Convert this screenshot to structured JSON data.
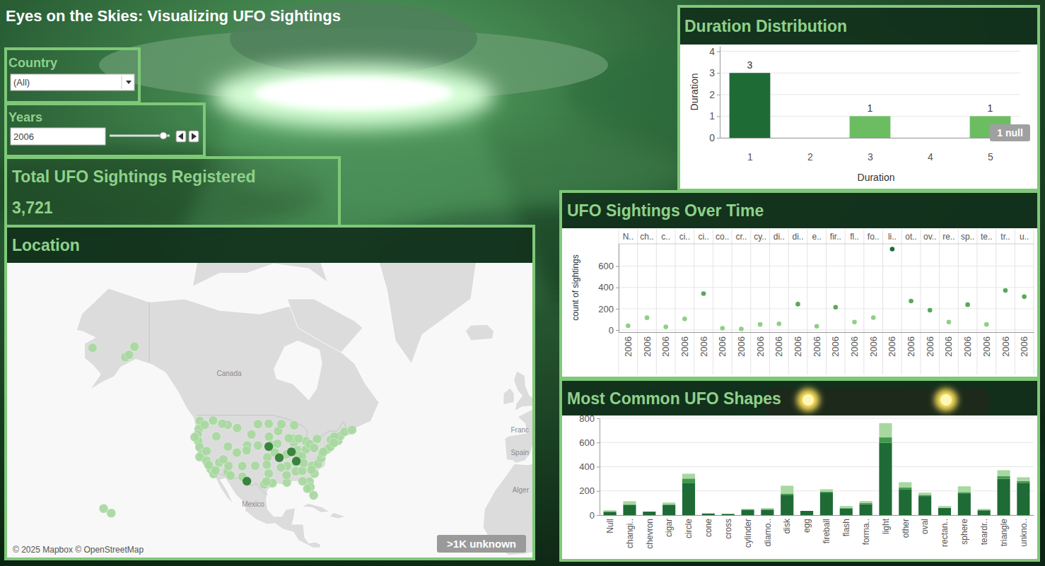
{
  "dashboard": {
    "title": "Eyes on the Skies: Visualizing UFO Sightings",
    "country": {
      "label": "Country",
      "value": "(All)"
    },
    "years": {
      "label": "Years",
      "value": "2006"
    },
    "kpi": {
      "title": "Total UFO Sightings Registered",
      "value": 3721,
      "label": "3,721"
    }
  },
  "chart_data": [
    {
      "type": "map",
      "title": "Location",
      "lon": [
        -162.0,
        -146.5,
        -149.9,
        -148.5,
        -157.9,
        -155.1,
        -122.3,
        -122.7,
        -117.4,
        -116.2,
        -123.1,
        -122.9,
        -122.4,
        -121.5,
        -122.4,
        -119.8,
        -118.2,
        -117.2,
        -115.1,
        -119.8,
        -112.1,
        -110.9,
        -111.9,
        -108.5,
        -112.0,
        -114.0,
        -104.8,
        -105.0,
        -106.6,
        -106.5,
        -111.7,
        -100.8,
        -96.8,
        -96.7,
        -103.2,
        -96.0,
        -97.3,
        -97.5,
        -96.8,
        -95.4,
        -98.5,
        -97.7,
        -101.8,
        -93.3,
        -93.6,
        -94.6,
        -90.2,
        -87.6,
        -87.9,
        -83.0,
        -86.2,
        -83.0,
        -81.7,
        -80.0,
        -85.8,
        -86.8,
        -90.0,
        -92.3,
        -90.1,
        -90.2,
        -86.8,
        -84.4,
        -80.8,
        -78.6,
        -77.4,
        -77.0,
        -75.2,
        -74.0,
        -71.1,
        -73.8,
        -78.9,
        -70.3,
        -68.8,
        -66.0,
        -72.5,
        -81.7,
        -81.4,
        -82.5,
        -80.2,
        -84.3,
        -79.9,
        -87.4,
        -92.1,
        -120.5,
        -119.0,
        -108.6,
        -100.8,
        -89.4,
        -85.7,
        -84.5,
        -83.9,
        -81.0,
        -76.6,
        -72.7,
        -124.2,
        -116.5,
        -113.6,
        -104.9,
        -96.8,
        -92.9,
        -88.4,
        -86.6
      ],
      "lat": [
        62.8,
        63.0,
        61.2,
        61.6,
        21.3,
        19.7,
        47.6,
        45.5,
        47.7,
        43.6,
        44.1,
        42.3,
        40.6,
        38.6,
        37.8,
        36.7,
        34.1,
        32.7,
        36.2,
        39.5,
        33.4,
        32.2,
        40.8,
        45.8,
        46.6,
        46.9,
        41.1,
        39.7,
        35.1,
        31.8,
        35.2,
        46.8,
        46.9,
        43.5,
        44.1,
        41.3,
        37.7,
        35.5,
        32.8,
        29.8,
        29.4,
        30.3,
        35.2,
        45.0,
        41.6,
        39.1,
        38.6,
        41.9,
        43.0,
        42.3,
        39.8,
        40.0,
        41.5,
        40.4,
        38.3,
        36.2,
        35.1,
        34.7,
        30.0,
        32.3,
        33.5,
        33.7,
        35.2,
        35.8,
        37.5,
        38.9,
        40.0,
        40.7,
        42.4,
        42.7,
        42.9,
        43.7,
        44.8,
        45.3,
        43.5,
        30.3,
        28.5,
        28.0,
        25.8,
        30.4,
        32.8,
        46.5,
        46.8,
        46.6,
        35.4,
        39.1,
        41.1,
        43.1,
        43.0,
        38.0,
        36.0,
        34.0,
        39.3,
        41.8,
        43.4,
        33.8,
        37.1,
        30.4,
        40.8,
        37.6,
        39.3,
        36.6
      ],
      "colors": [
        "#a8d8a0",
        "#a8d8a0",
        "#a8d8a0",
        "#a8d8a0",
        "#a8d8a0",
        "#a8d8a0",
        "#a8d8a0",
        "#a8d8a0",
        "#a8d8a0",
        "#a8d8a0",
        "#a8d8a0",
        "#a8d8a0",
        "#a8d8a0",
        "#a8d8a0",
        "#a8d8a0",
        "#a8d8a0",
        "#a8d8a0",
        "#a8d8a0",
        "#a8d8a0",
        "#a8d8a0",
        "#a8d8a0",
        "#a8d8a0",
        "#a8d8a0",
        "#a8d8a0",
        "#a8d8a0",
        "#a8d8a0",
        "#a8d8a0",
        "#a8d8a0",
        "#a8d8a0",
        "#a8d8a0",
        "#a8d8a0",
        "#a8d8a0",
        "#a8d8a0",
        "#a8d8a0",
        "#a8d8a0",
        "#a8d8a0",
        "#a8d8a0",
        "#a8d8a0",
        "#a8d8a0",
        "#a8d8a0",
        "#a8d8a0",
        "#a8d8a0",
        "#a8d8a0",
        "#a8d8a0",
        "#a8d8a0",
        "#a8d8a0",
        "#a8d8a0",
        "#a8d8a0",
        "#a8d8a0",
        "#a8d8a0",
        "#a8d8a0",
        "#a8d8a0",
        "#a8d8a0",
        "#a8d8a0",
        "#a8d8a0",
        "#a8d8a0",
        "#a8d8a0",
        "#a8d8a0",
        "#a8d8a0",
        "#a8d8a0",
        "#a8d8a0",
        "#a8d8a0",
        "#a8d8a0",
        "#a8d8a0",
        "#a8d8a0",
        "#a8d8a0",
        "#a8d8a0",
        "#a8d8a0",
        "#a8d8a0",
        "#a8d8a0",
        "#a8d8a0",
        "#a8d8a0",
        "#a8d8a0",
        "#a8d8a0",
        "#a8d8a0",
        "#a8d8a0",
        "#a8d8a0",
        "#a8d8a0",
        "#a8d8a0",
        "#a8d8a0",
        "#a8d8a0",
        "#a8d8a0",
        "#a8d8a0",
        "#a8d8a0",
        "#a8d8a0",
        "#a8d8a0",
        "#a8d8a0",
        "#a8d8a0",
        "#a8d8a0",
        "#a8d8a0",
        "#a8d8a0",
        "#a8d8a0",
        "#a8d8a0",
        "#a8d8a0",
        "#a8d8a0",
        "#a8d8a0",
        "#a8d8a0",
        "#2e7d32",
        "#2e7d32",
        "#2e7d32",
        "#2e7d32",
        "#2e7d32"
      ],
      "place_labels": [
        "Canada",
        "Mexico",
        "Franc",
        "Spain",
        "Alger"
      ],
      "attribution": "© 2025 Mapbox © OpenStreetMap",
      "badge": ">1K unknown"
    },
    {
      "type": "bar",
      "title": "Duration Distribution",
      "x_label": "Duration",
      "y_label": "Duration",
      "x": [
        1,
        3,
        5
      ],
      "values": [
        3,
        1,
        1
      ],
      "colors": [
        "#1f6b35",
        "#6cbd62",
        "#6cbd62"
      ],
      "xlim": [
        0.5,
        5.5
      ],
      "xticks": [
        1,
        2,
        3,
        4,
        5
      ],
      "ylim": [
        0,
        4.25
      ],
      "yticks": [
        0,
        1,
        2,
        3,
        4
      ],
      "grid": true,
      "data_labels": true,
      "badge": "1 null"
    },
    {
      "type": "scatter",
      "title": "UFO Sightings Over Time",
      "y_label": "count of sightings",
      "facets": [
        "N..",
        "ch..",
        "c..",
        "ci..",
        "ci..",
        "co..",
        "cr..",
        "cy..",
        "di..",
        "di..",
        "e..",
        "fir..",
        "fl..",
        "fo..",
        "li..",
        "ot..",
        "ov..",
        "re..",
        "sp..",
        "te..",
        "tr..",
        "u.."
      ],
      "categories": [
        "2006",
        "2006",
        "2006",
        "2006",
        "2006",
        "2006",
        "2006",
        "2006",
        "2006",
        "2006",
        "2006",
        "2006",
        "2006",
        "2006",
        "2006",
        "2006",
        "2006",
        "2006",
        "2006",
        "2006",
        "2006",
        "2006"
      ],
      "values": [
        40,
        115,
        29,
        104,
        342,
        17,
        10,
        52,
        58,
        243,
        35,
        214,
        75,
        116,
        760,
        272,
        186,
        75,
        238,
        52,
        371,
        313
      ],
      "colors": [
        "#8fcf86",
        "#8fcf86",
        "#8fcf86",
        "#8fcf86",
        "#5aa85a",
        "#8fcf86",
        "#8fcf86",
        "#8fcf86",
        "#8fcf86",
        "#5aa85a",
        "#8fcf86",
        "#5aa85a",
        "#8fcf86",
        "#8fcf86",
        "#1f6b35",
        "#5aa85a",
        "#5aa85a",
        "#8fcf86",
        "#5aa85a",
        "#8fcf86",
        "#5aa85a",
        "#5aa85a"
      ],
      "ylim": [
        -20,
        810
      ],
      "yticks": [
        0,
        200,
        400,
        600
      ],
      "grid": true
    },
    {
      "type": "bar",
      "title": "Most Common UFO Shapes",
      "categories": [
        "Null",
        "changi..",
        "chevron",
        "cigar",
        "circle",
        "cone",
        "cross",
        "cylinder",
        "diamo..",
        "disk",
        "egg",
        "fireball",
        "flash",
        "forma..",
        "light",
        "other",
        "oval",
        "rectan..",
        "sphere",
        "teardr..",
        "triangle",
        "unkno.."
      ],
      "stacked": true,
      "series": [
        {
          "color": "#1f6b35",
          "values": [
            28,
            85,
            29,
            85,
            267,
            12,
            10,
            45,
            45,
            168,
            35,
            186,
            55,
            90,
            597,
            214,
            157,
            60,
            180,
            40,
            301,
            267
          ]
        },
        {
          "color": "#3f9a4c",
          "values": [
            0,
            5,
            0,
            5,
            35,
            0,
            0,
            0,
            5,
            10,
            0,
            8,
            5,
            10,
            45,
            15,
            10,
            0,
            10,
            0,
            20,
            15
          ]
        },
        {
          "color": "#a8d8a0",
          "values": [
            12,
            25,
            0,
            14,
            40,
            5,
            0,
            7,
            8,
            65,
            0,
            20,
            15,
            16,
            118,
            43,
            19,
            15,
            48,
            12,
            50,
            31
          ]
        }
      ],
      "ylim": [
        0,
        800
      ],
      "yticks": [
        0,
        200,
        400,
        600,
        800
      ],
      "grid": true
    }
  ]
}
